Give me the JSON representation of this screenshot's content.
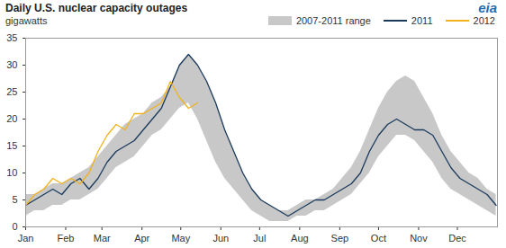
{
  "chart_data": {
    "type": "line",
    "title": "Daily U.S. nuclear capacity outages",
    "subtitle": "gigawatts",
    "annotation": "eia",
    "x": [
      1,
      8,
      15,
      22,
      29,
      36,
      43,
      50,
      57,
      64,
      71,
      78,
      85,
      92,
      99,
      106,
      113,
      120,
      127,
      134,
      141,
      148,
      155,
      162,
      169,
      176,
      183,
      190,
      197,
      204,
      211,
      218,
      225,
      232,
      239,
      246,
      253,
      260,
      267,
      274,
      281,
      288,
      295,
      302,
      309,
      316,
      323,
      330,
      337,
      344,
      351,
      358,
      365
    ],
    "xlim": [
      1,
      366
    ],
    "xticks": [
      {
        "value": 1,
        "label": "Jan"
      },
      {
        "value": 32,
        "label": "Feb"
      },
      {
        "value": 60,
        "label": "Mar"
      },
      {
        "value": 91,
        "label": "Apr"
      },
      {
        "value": 121,
        "label": "May"
      },
      {
        "value": 152,
        "label": "Jun"
      },
      {
        "value": 182,
        "label": "Jul"
      },
      {
        "value": 213,
        "label": "Aug"
      },
      {
        "value": 244,
        "label": "Sep"
      },
      {
        "value": 274,
        "label": "Oct"
      },
      {
        "value": 305,
        "label": "Nov"
      },
      {
        "value": 335,
        "label": "Dec"
      }
    ],
    "ylim": [
      0,
      35
    ],
    "yticks": [
      0,
      5,
      10,
      15,
      20,
      25,
      30,
      35
    ],
    "grid": false,
    "legend": "top-right",
    "series": [
      {
        "name": "2007-2011 range",
        "type": "area",
        "color": "#c8c8c8",
        "low": [
          2,
          3,
          3,
          4,
          4,
          5,
          5,
          6,
          7,
          9,
          11,
          12,
          13,
          15,
          17,
          18,
          20,
          22,
          23,
          20,
          16,
          12,
          9,
          7,
          5,
          3,
          2,
          1,
          1,
          1,
          2,
          2,
          3,
          3,
          4,
          5,
          6,
          8,
          10,
          13,
          15,
          17,
          17,
          16,
          14,
          12,
          9,
          7,
          6,
          5,
          4,
          3,
          2
        ],
        "high": [
          6,
          6,
          7,
          8,
          8,
          9,
          10,
          11,
          13,
          15,
          17,
          19,
          20,
          21,
          23,
          24,
          26,
          30,
          32,
          30,
          27,
          23,
          18,
          14,
          10,
          7,
          5,
          4,
          3,
          3,
          4,
          5,
          5,
          6,
          7,
          9,
          11,
          14,
          18,
          22,
          25,
          27,
          28,
          27,
          24,
          21,
          17,
          14,
          12,
          10,
          9,
          7,
          6
        ]
      },
      {
        "name": "2011",
        "type": "line",
        "color": "#1b3a5c",
        "values": [
          4,
          5,
          6,
          7,
          6,
          8,
          9,
          7,
          9,
          12,
          14,
          15,
          16,
          18,
          20,
          22,
          26,
          30,
          32,
          30,
          27,
          23,
          18,
          14,
          10,
          7,
          5,
          4,
          3,
          2,
          3,
          4,
          5,
          5,
          6,
          7,
          8,
          10,
          14,
          17,
          19,
          20,
          19,
          18,
          18,
          17,
          14,
          11,
          9,
          8,
          7,
          6,
          4
        ]
      },
      {
        "name": "2012",
        "type": "line",
        "color": "#f2b21e",
        "values": [
          4,
          6,
          7,
          9,
          8,
          9,
          8,
          10,
          14,
          17,
          19,
          18,
          21,
          21,
          22,
          23,
          27,
          24,
          22,
          23,
          null,
          null,
          null,
          null,
          null,
          null,
          null,
          null,
          null,
          null,
          null,
          null,
          null,
          null,
          null,
          null,
          null,
          null,
          null,
          null,
          null,
          null,
          null,
          null,
          null,
          null,
          null,
          null,
          null,
          null,
          null,
          null,
          null
        ]
      }
    ]
  }
}
